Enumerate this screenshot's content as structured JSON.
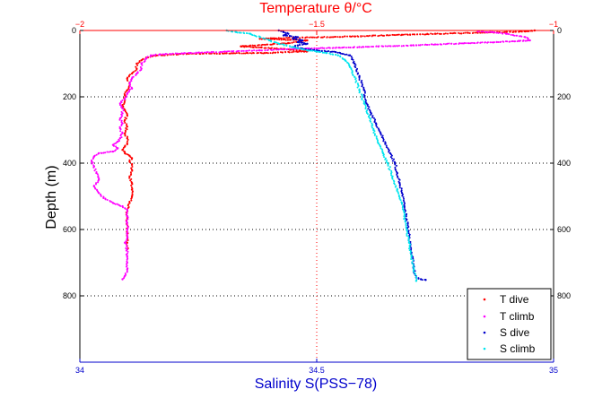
{
  "chart_data": {
    "type": "scatter",
    "title": "Temperature θ/°C",
    "xlabel_bottom": "Salinity S(PSS−78)",
    "ylabel": "Depth (m)",
    "x_bottom": {
      "lim": [
        34,
        35
      ],
      "ticks": [
        "34",
        "34.5",
        "35"
      ],
      "color": "#0000cc"
    },
    "x_top": {
      "lim": [
        -2,
        -1
      ],
      "ticks": [
        "−2",
        "−1.5",
        "−1"
      ],
      "color": "#ff0000"
    },
    "y": {
      "lim": [
        0,
        1000
      ],
      "reversed": true,
      "ticks": [
        "0",
        "200",
        "400",
        "600",
        "800"
      ]
    },
    "grid": "dotted",
    "legend_position": "bottom-right",
    "colors": {
      "t_dive": "#ff0000",
      "t_climb": "#ff00ff",
      "s_dive": "#0000cc",
      "s_climb": "#00e5ee"
    },
    "series": [
      {
        "name": "T dive",
        "axis": "top",
        "color": "#ff0000",
        "points": [
          [
            -1.04,
            0
          ],
          [
            -1.06,
            3
          ],
          [
            -1.1,
            5
          ],
          [
            -1.16,
            7
          ],
          [
            -1.25,
            10
          ],
          [
            -1.32,
            13
          ],
          [
            -1.42,
            18
          ],
          [
            -1.55,
            22
          ],
          [
            -1.62,
            25
          ],
          [
            -1.52,
            30
          ],
          [
            -1.56,
            38
          ],
          [
            -1.66,
            48
          ],
          [
            -1.57,
            56
          ],
          [
            -1.52,
            63
          ],
          [
            -1.61,
            68
          ],
          [
            -1.77,
            70
          ],
          [
            -1.84,
            76
          ],
          [
            -1.86,
            82
          ],
          [
            -1.87,
            90
          ],
          [
            -1.88,
            100
          ],
          [
            -1.88,
            115
          ],
          [
            -1.89,
            130
          ],
          [
            -1.9,
            145
          ],
          [
            -1.895,
            160
          ],
          [
            -1.9,
            180
          ],
          [
            -1.905,
            195
          ],
          [
            -1.905,
            210
          ],
          [
            -1.91,
            225
          ],
          [
            -1.905,
            240
          ],
          [
            -1.9,
            255
          ],
          [
            -1.905,
            270
          ],
          [
            -1.9,
            290
          ],
          [
            -1.905,
            310
          ],
          [
            -1.9,
            325
          ],
          [
            -1.9,
            340
          ],
          [
            -1.905,
            350
          ],
          [
            -1.91,
            360
          ],
          [
            -1.905,
            370
          ],
          [
            -1.895,
            378
          ],
          [
            -1.89,
            385
          ],
          [
            -1.895,
            395
          ],
          [
            -1.89,
            405
          ],
          [
            -1.89,
            420
          ],
          [
            -1.895,
            440
          ],
          [
            -1.89,
            460
          ],
          [
            -1.89,
            480
          ],
          [
            -1.89,
            500
          ],
          [
            -1.895,
            520
          ],
          [
            -1.9,
            540
          ],
          [
            -1.9,
            560
          ],
          [
            -1.9,
            580
          ],
          [
            -1.9,
            600
          ],
          [
            -1.9,
            620
          ],
          [
            -1.9,
            640
          ],
          [
            -1.9,
            660
          ]
        ]
      },
      {
        "name": "T climb",
        "axis": "top",
        "color": "#ff00ff",
        "points": [
          [
            -1.91,
            750
          ],
          [
            -1.905,
            740
          ],
          [
            -1.9,
            720
          ],
          [
            -1.9,
            700
          ],
          [
            -1.9,
            680
          ],
          [
            -1.9,
            660
          ],
          [
            -1.905,
            640
          ],
          [
            -1.9,
            620
          ],
          [
            -1.9,
            600
          ],
          [
            -1.9,
            580
          ],
          [
            -1.9,
            560
          ],
          [
            -1.9,
            540
          ],
          [
            -1.91,
            530
          ],
          [
            -1.93,
            520
          ],
          [
            -1.95,
            505
          ],
          [
            -1.96,
            490
          ],
          [
            -1.97,
            470
          ],
          [
            -1.96,
            450
          ],
          [
            -1.965,
            430
          ],
          [
            -1.97,
            410
          ],
          [
            -1.975,
            395
          ],
          [
            -1.97,
            380
          ],
          [
            -1.96,
            370
          ],
          [
            -1.93,
            365
          ],
          [
            -1.92,
            355
          ],
          [
            -1.93,
            345
          ],
          [
            -1.92,
            335
          ],
          [
            -1.915,
            325
          ],
          [
            -1.91,
            310
          ],
          [
            -1.915,
            295
          ],
          [
            -1.91,
            280
          ],
          [
            -1.915,
            265
          ],
          [
            -1.91,
            250
          ],
          [
            -1.91,
            235
          ],
          [
            -1.915,
            220
          ],
          [
            -1.905,
            205
          ],
          [
            -1.9,
            190
          ],
          [
            -1.89,
            175
          ],
          [
            -1.895,
            160
          ],
          [
            -1.89,
            145
          ],
          [
            -1.88,
            130
          ],
          [
            -1.87,
            115
          ],
          [
            -1.87,
            100
          ],
          [
            -1.86,
            85
          ],
          [
            -1.85,
            75
          ],
          [
            -1.83,
            72
          ],
          [
            -1.75,
            67
          ],
          [
            -1.62,
            60
          ],
          [
            -1.54,
            55
          ],
          [
            -1.41,
            50
          ],
          [
            -1.3,
            45
          ],
          [
            -1.25,
            42
          ],
          [
            -1.12,
            35
          ],
          [
            -1.05,
            30
          ],
          [
            -1.06,
            20
          ],
          [
            -1.1,
            10
          ],
          [
            -1.13,
            5
          ],
          [
            -1.16,
            3
          ]
        ]
      },
      {
        "name": "S dive",
        "axis": "bottom",
        "color": "#0000cc",
        "points": [
          [
            34.42,
            0
          ],
          [
            34.43,
            5
          ],
          [
            34.44,
            10
          ],
          [
            34.43,
            15
          ],
          [
            34.46,
            20
          ],
          [
            34.45,
            25
          ],
          [
            34.47,
            30
          ],
          [
            34.46,
            35
          ],
          [
            34.48,
            40
          ],
          [
            34.46,
            45
          ],
          [
            34.45,
            50
          ],
          [
            34.47,
            55
          ],
          [
            34.5,
            60
          ],
          [
            34.54,
            65
          ],
          [
            34.57,
            75
          ],
          [
            34.58,
            100
          ],
          [
            34.59,
            140
          ],
          [
            34.6,
            180
          ],
          [
            34.605,
            220
          ],
          [
            34.615,
            250
          ],
          [
            34.625,
            280
          ],
          [
            34.635,
            310
          ],
          [
            34.645,
            340
          ],
          [
            34.655,
            370
          ],
          [
            34.665,
            400
          ],
          [
            34.67,
            430
          ],
          [
            34.675,
            460
          ],
          [
            34.68,
            490
          ],
          [
            34.685,
            530
          ],
          [
            34.69,
            570
          ],
          [
            34.695,
            620
          ],
          [
            34.7,
            670
          ],
          [
            34.705,
            720
          ],
          [
            34.71,
            745
          ],
          [
            34.72,
            750
          ],
          [
            34.73,
            752
          ]
        ]
      },
      {
        "name": "S climb",
        "axis": "bottom",
        "color": "#00e5ee",
        "points": [
          [
            34.71,
            755
          ],
          [
            34.705,
            720
          ],
          [
            34.7,
            680
          ],
          [
            34.695,
            640
          ],
          [
            34.69,
            600
          ],
          [
            34.685,
            560
          ],
          [
            34.68,
            520
          ],
          [
            34.67,
            480
          ],
          [
            34.66,
            440
          ],
          [
            34.65,
            400
          ],
          [
            34.64,
            370
          ],
          [
            34.63,
            340
          ],
          [
            34.62,
            300
          ],
          [
            34.61,
            260
          ],
          [
            34.6,
            220
          ],
          [
            34.59,
            180
          ],
          [
            34.58,
            140
          ],
          [
            34.57,
            110
          ],
          [
            34.56,
            90
          ],
          [
            34.545,
            75
          ],
          [
            34.52,
            68
          ],
          [
            34.5,
            64
          ],
          [
            34.48,
            60
          ],
          [
            34.45,
            50
          ],
          [
            34.42,
            40
          ],
          [
            34.4,
            30
          ],
          [
            34.38,
            20
          ],
          [
            34.36,
            10
          ],
          [
            34.33,
            5
          ],
          [
            34.31,
            0
          ]
        ]
      }
    ]
  }
}
